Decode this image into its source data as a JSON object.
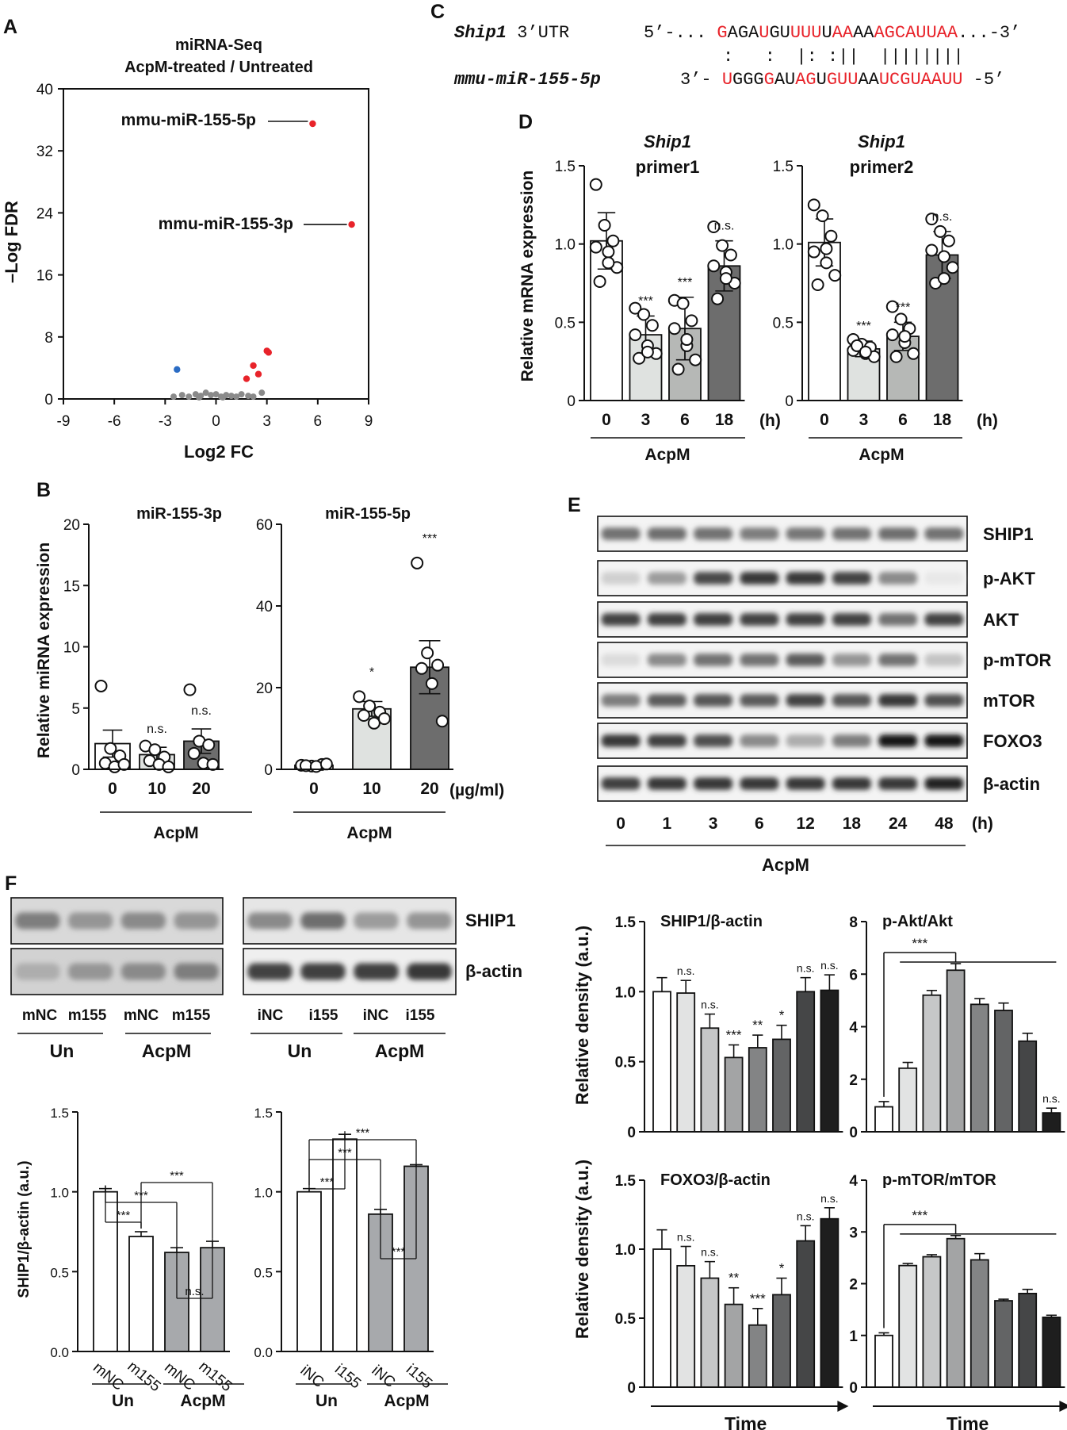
{
  "figure": {
    "panel_labels": [
      "A",
      "B",
      "C",
      "D",
      "E",
      "F"
    ]
  },
  "chart_data": [
    {
      "id": "A",
      "type": "scatter",
      "title": "miRNA-Seq",
      "subtitle": "AcpM-treated / Untreated",
      "xlabel": "Log2 FC",
      "ylabel": "–Log FDR",
      "xlim": [
        -9,
        9
      ],
      "ylim": [
        0,
        40
      ],
      "xticks": [
        "-9",
        "-6",
        "-3",
        "0",
        "3",
        "6",
        "9"
      ],
      "yticks": [
        "0",
        "8",
        "16",
        "24",
        "32",
        "40"
      ],
      "annotations": [
        "mmu-miR-155-5p",
        "mmu-miR-155-3p"
      ],
      "colors": {
        "up": "#e8232a",
        "down": "#2b6cc4",
        "ns": "#8a8a8a"
      },
      "points": [
        {
          "x": 5.7,
          "y": 35.5,
          "g": "up"
        },
        {
          "x": 8.0,
          "y": 22.5,
          "g": "up"
        },
        {
          "x": 3.0,
          "y": 6.2,
          "g": "up"
        },
        {
          "x": 3.1,
          "y": 6.0,
          "g": "up"
        },
        {
          "x": 2.2,
          "y": 4.3,
          "g": "up"
        },
        {
          "x": 2.5,
          "y": 3.2,
          "g": "up"
        },
        {
          "x": 1.8,
          "y": 2.6,
          "g": "up"
        },
        {
          "x": -2.3,
          "y": 3.8,
          "g": "down"
        },
        {
          "x": 2.7,
          "y": 0.8,
          "g": "ns"
        },
        {
          "x": -2.5,
          "y": 0.3,
          "g": "ns"
        },
        {
          "x": -2.0,
          "y": 0.5,
          "g": "ns"
        },
        {
          "x": -1.6,
          "y": 0.3,
          "g": "ns"
        },
        {
          "x": -1.2,
          "y": 0.6,
          "g": "ns"
        },
        {
          "x": -0.9,
          "y": 0.4,
          "g": "ns"
        },
        {
          "x": -0.6,
          "y": 0.8,
          "g": "ns"
        },
        {
          "x": -0.3,
          "y": 0.5,
          "g": "ns"
        },
        {
          "x": 0.0,
          "y": 0.6,
          "g": "ns"
        },
        {
          "x": 0.3,
          "y": 0.3,
          "g": "ns"
        },
        {
          "x": 0.6,
          "y": 0.5,
          "g": "ns"
        },
        {
          "x": 0.9,
          "y": 0.4,
          "g": "ns"
        },
        {
          "x": 1.2,
          "y": 0.3,
          "g": "ns"
        },
        {
          "x": 1.5,
          "y": 0.6,
          "g": "ns"
        },
        {
          "x": 1.9,
          "y": 0.4,
          "g": "ns"
        },
        {
          "x": 2.2,
          "y": 0.3,
          "g": "ns"
        },
        {
          "x": -1.0,
          "y": 0.2,
          "g": "ns"
        },
        {
          "x": 0.4,
          "y": 0.2,
          "g": "ns"
        }
      ]
    },
    {
      "id": "B1",
      "type": "bar",
      "title": "miR-155-3p",
      "ylabel": "Relative miRNA expression",
      "ylim": [
        0,
        20
      ],
      "yticks": [
        "0",
        "5",
        "10",
        "15",
        "20"
      ],
      "categories": [
        "0",
        "10",
        "20"
      ],
      "group_label": "AcpM",
      "values": [
        2.1,
        1.2,
        2.3
      ],
      "errors": [
        1.1,
        0.6,
        1.0
      ],
      "fills": [
        "#ffffff",
        "#dfe2e0",
        "#6d6d6d"
      ],
      "sig": [
        "",
        "n.s.",
        "n.s."
      ],
      "dots": [
        [
          6.8,
          1.7,
          1.1,
          0.5,
          0.2,
          0.4
        ],
        [
          1.9,
          1.6,
          1.0,
          0.7,
          0.4,
          0.2
        ],
        [
          6.5,
          2.3,
          2.0,
          1.3,
          0.5,
          0.4
        ]
      ]
    },
    {
      "id": "B2",
      "type": "bar",
      "title": "miR-155-5p",
      "ylim": [
        0,
        60
      ],
      "yticks": [
        "0",
        "20",
        "40",
        "60"
      ],
      "categories": [
        "0",
        "10",
        "20"
      ],
      "group_label": "AcpM",
      "unit": "(µg/ml)",
      "values": [
        1.0,
        14.8,
        25.0
      ],
      "errors": [
        0.3,
        1.8,
        6.5
      ],
      "fills": [
        "#ffffff",
        "#dfe2e0",
        "#6d6d6d"
      ],
      "sig": [
        "",
        "*",
        "***"
      ],
      "dots": [
        [
          1.0,
          0.8,
          1.2,
          0.9,
          0.7,
          1.3
        ],
        [
          17.8,
          15.5,
          14.0,
          13.2,
          11.3,
          12.4
        ],
        [
          50.5,
          28.5,
          25.5,
          24.7,
          21.0,
          11.8
        ]
      ]
    },
    {
      "id": "C",
      "type": "table",
      "row1_gene": "Ship1",
      "row1_label": " 3’UTR",
      "row1_prefix": "5’-... ",
      "row1_suffix": "...-3’",
      "row1_seq": [
        {
          "t": "G",
          "r": 1
        },
        {
          "t": "AGA",
          "r": 0
        },
        {
          "t": "U",
          "r": 1
        },
        {
          "t": "GU",
          "r": 0
        },
        {
          "t": "UUU",
          "r": 1
        },
        {
          "t": "U",
          "r": 0
        },
        {
          "t": "AA",
          "r": 1
        },
        {
          "t": "AA",
          "r": 0
        },
        {
          "t": "AGCAUUAA",
          "r": 1
        }
      ],
      "pair_line": ":   :  |: :||  ||||||||",
      "row2_label": "mmu-miR-155-5p",
      "row2_prefix": "3’- ",
      "row2_suffix": " -5’",
      "row2_seq": [
        {
          "t": "U",
          "r": 1
        },
        {
          "t": "GGG",
          "r": 0
        },
        {
          "t": "G",
          "r": 1
        },
        {
          "t": "AU",
          "r": 0
        },
        {
          "t": "AG",
          "r": 1
        },
        {
          "t": "U",
          "r": 0
        },
        {
          "t": "GUU",
          "r": 1
        },
        {
          "t": "AA",
          "r": 0
        },
        {
          "t": "UCGUAAUU",
          "r": 1
        }
      ]
    },
    {
      "id": "D1",
      "type": "bar",
      "title_gene": "Ship1",
      "title_primer": "primer1",
      "ylabel": "Relative mRNA expression",
      "ylim": [
        0,
        1.5
      ],
      "yticks": [
        "0",
        "0.5",
        "1.0",
        "1.5"
      ],
      "categories": [
        "0",
        "3",
        "6",
        "18"
      ],
      "unit": "(h)",
      "group_label": "AcpM",
      "values": [
        1.02,
        0.42,
        0.46,
        0.86
      ],
      "errors": [
        0.18,
        0.12,
        0.2,
        0.16
      ],
      "fills": [
        "#ffffff",
        "#dfe2e0",
        "#b6b8b6",
        "#6d6d6d"
      ],
      "sig": [
        "",
        "***",
        "***",
        "n.s."
      ],
      "dots": [
        [
          1.38,
          1.12,
          1.02,
          0.98,
          0.95,
          0.85,
          0.76,
          0.88
        ],
        [
          0.59,
          0.55,
          0.48,
          0.42,
          0.35,
          0.3,
          0.27,
          0.31
        ],
        [
          0.64,
          0.62,
          0.51,
          0.46,
          0.35,
          0.26,
          0.2,
          0.39
        ],
        [
          1.11,
          0.99,
          0.93,
          0.86,
          0.82,
          0.75,
          0.65,
          0.78
        ]
      ]
    },
    {
      "id": "D2",
      "type": "bar",
      "title_gene": "Ship1",
      "title_primer": "primer2",
      "ylim": [
        0,
        1.5
      ],
      "yticks": [
        "0",
        "0.5",
        "1.0",
        "1.5"
      ],
      "categories": [
        "0",
        "3",
        "6",
        "18"
      ],
      "unit": "(h)",
      "group_label": "AcpM",
      "values": [
        1.01,
        0.33,
        0.41,
        0.93
      ],
      "errors": [
        0.15,
        0.05,
        0.09,
        0.15
      ],
      "fills": [
        "#ffffff",
        "#dfe2e0",
        "#b6b8b6",
        "#6d6d6d"
      ],
      "sig": [
        "",
        "***",
        "***",
        "n.s."
      ],
      "dots": [
        [
          1.25,
          1.18,
          1.05,
          0.95,
          0.88,
          0.8,
          0.74,
          0.97
        ],
        [
          0.39,
          0.36,
          0.34,
          0.32,
          0.3,
          0.28,
          0.35,
          0.31
        ],
        [
          0.6,
          0.52,
          0.46,
          0.42,
          0.37,
          0.3,
          0.28,
          0.41
        ],
        [
          1.16,
          1.08,
          1.02,
          0.96,
          0.92,
          0.85,
          0.75,
          0.78
        ]
      ]
    },
    {
      "id": "E-density-SHIP1",
      "type": "bar",
      "title": "SHIP1/β-actin",
      "ylabel": "Relative density (a.u.)",
      "ylim": [
        0,
        1.5
      ],
      "yticks": [
        "0",
        "0.5",
        "1.0",
        "1.5"
      ],
      "values": [
        1.0,
        0.99,
        0.74,
        0.53,
        0.6,
        0.66,
        1.0,
        1.01
      ],
      "errors": [
        0.1,
        0.09,
        0.1,
        0.09,
        0.09,
        0.1,
        0.1,
        0.11
      ],
      "sig": [
        "",
        "n.s.",
        "n.s.",
        "***",
        "**",
        "*",
        "n.s.",
        "n.s."
      ]
    },
    {
      "id": "E-density-pAkt",
      "type": "bar",
      "title": "p-Akt/Akt",
      "ylim": [
        0,
        8
      ],
      "yticks": [
        "0",
        "2",
        "4",
        "6",
        "8"
      ],
      "values": [
        0.95,
        2.42,
        5.2,
        6.15,
        4.85,
        4.62,
        3.45,
        0.72
      ],
      "errors": [
        0.2,
        0.22,
        0.18,
        0.25,
        0.22,
        0.28,
        0.3,
        0.18
      ],
      "sig": [
        "",
        "",
        "",
        "",
        "",
        "",
        "",
        "n.s."
      ],
      "bracket_sig": "***"
    },
    {
      "id": "E-density-FOXO3",
      "type": "bar",
      "title": "FOXO3/β-actin",
      "ylabel": "Relative density (a.u.)",
      "ylim": [
        0,
        1.5
      ],
      "yticks": [
        "0",
        "0.5",
        "1.0",
        "1.5"
      ],
      "xlabel": "Time",
      "values": [
        1.0,
        0.88,
        0.79,
        0.6,
        0.45,
        0.67,
        1.06,
        1.22
      ],
      "errors": [
        0.14,
        0.14,
        0.12,
        0.12,
        0.12,
        0.12,
        0.11,
        0.08
      ],
      "sig": [
        "",
        "n.s.",
        "n.s.",
        "**",
        "***",
        "*",
        "n.s.",
        "n.s."
      ]
    },
    {
      "id": "E-density-pmTOR",
      "type": "bar",
      "title": "p-mTOR/mTOR",
      "ylim": [
        0,
        4
      ],
      "yticks": [
        "0",
        "1",
        "2",
        "3",
        "4"
      ],
      "xlabel": "Time",
      "values": [
        1.0,
        2.35,
        2.52,
        2.87,
        2.46,
        1.67,
        1.81,
        1.35
      ],
      "errors": [
        0.05,
        0.04,
        0.04,
        0.06,
        0.12,
        0.03,
        0.08,
        0.04
      ],
      "sig": [
        "",
        "",
        "",
        "",
        "",
        "",
        "",
        ""
      ],
      "bracket_sig": "***"
    },
    {
      "id": "F1",
      "type": "bar",
      "ylabel": "SHIP1/β-actin (a.u.)",
      "ylim": [
        0,
        1.5
      ],
      "yticks": [
        "0.0",
        "0.5",
        "1.0",
        "1.5"
      ],
      "categories": [
        "mNC",
        "m155",
        "mNC",
        "m155"
      ],
      "groups": [
        "Un",
        "AcpM"
      ],
      "values": [
        1.0,
        0.72,
        0.62,
        0.65
      ],
      "errors": [
        0.02,
        0.03,
        0.03,
        0.04
      ],
      "fills": [
        "#ffffff",
        "#ffffff",
        "#a7a9ac",
        "#a7a9ac"
      ],
      "brackets": [
        "***",
        "***",
        "***",
        "n.s."
      ]
    },
    {
      "id": "F2",
      "type": "bar",
      "ylim": [
        0,
        1.5
      ],
      "yticks": [
        "0.0",
        "0.5",
        "1.0",
        "1.5"
      ],
      "categories": [
        "iNC",
        "i155",
        "iNC",
        "i155"
      ],
      "groups": [
        "Un",
        "AcpM"
      ],
      "values": [
        1.0,
        1.33,
        0.86,
        1.16
      ],
      "errors": [
        0.02,
        0.03,
        0.03,
        0.01
      ],
      "fills": [
        "#ffffff",
        "#ffffff",
        "#a7a9ac",
        "#a7a9ac"
      ],
      "brackets": [
        "***",
        "***",
        "***",
        "***"
      ]
    }
  ],
  "blots_E": {
    "proteins": [
      "SHIP1",
      "p-AKT",
      "AKT",
      "p-mTOR",
      "mTOR",
      "FOXO3",
      "β-actin"
    ],
    "timepoints": [
      "0",
      "1",
      "3",
      "6",
      "12",
      "18",
      "24",
      "48"
    ],
    "unit": "(h)",
    "group_label": "AcpM",
    "intensity": [
      [
        0.6,
        0.62,
        0.6,
        0.55,
        0.58,
        0.6,
        0.62,
        0.6
      ],
      [
        0.2,
        0.42,
        0.78,
        0.85,
        0.85,
        0.8,
        0.5,
        0.1
      ],
      [
        0.8,
        0.82,
        0.82,
        0.8,
        0.82,
        0.8,
        0.6,
        0.8
      ],
      [
        0.15,
        0.5,
        0.6,
        0.6,
        0.7,
        0.45,
        0.6,
        0.25
      ],
      [
        0.55,
        0.7,
        0.72,
        0.7,
        0.8,
        0.72,
        0.85,
        0.75
      ],
      [
        0.85,
        0.82,
        0.75,
        0.5,
        0.35,
        0.55,
        0.98,
        1.0
      ],
      [
        0.82,
        0.85,
        0.85,
        0.85,
        0.85,
        0.85,
        0.85,
        0.95
      ]
    ]
  },
  "blots_F": {
    "left": {
      "lanes": [
        "mNC",
        "m155",
        "mNC",
        "m155"
      ],
      "groups": [
        "Un",
        "AcpM"
      ]
    },
    "right": {
      "lanes": [
        "iNC",
        "i155",
        "iNC",
        "i155"
      ],
      "groups": [
        "Un",
        "AcpM"
      ]
    },
    "proteins": [
      "SHIP1",
      "β-actin"
    ],
    "intensity_left": [
      [
        0.55,
        0.45,
        0.5,
        0.45
      ],
      [
        0.35,
        0.45,
        0.5,
        0.55
      ]
    ],
    "intensity_right": [
      [
        0.5,
        0.62,
        0.42,
        0.45
      ],
      [
        0.8,
        0.82,
        0.82,
        0.85
      ]
    ]
  }
}
